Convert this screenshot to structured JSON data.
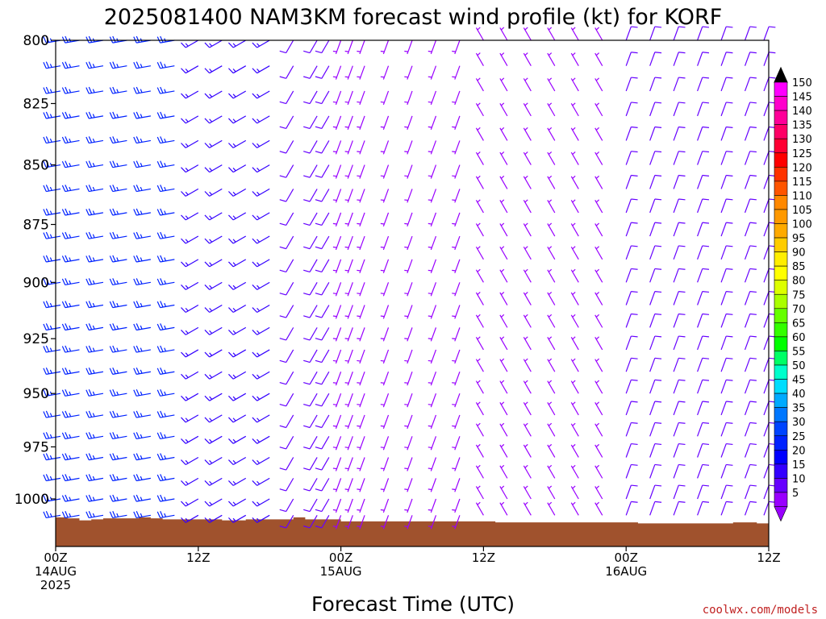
{
  "title": "2025081400 NAM3KM forecast wind profile (kt) for KORF",
  "credit": "coolwx.com/models",
  "chart_data": {
    "type": "wind-barb profile",
    "xlabel": "Forecast Time (UTC)",
    "ylabel": "",
    "y_axis": {
      "levels_hPa": [
        800,
        825,
        850,
        875,
        900,
        925,
        950,
        975,
        1000
      ],
      "range": [
        800,
        1020
      ],
      "inverted": true
    },
    "x_axis": {
      "range_hours": [
        0,
        60
      ],
      "ticks": [
        {
          "hour": 0,
          "lines": [
            "00Z",
            "14AUG",
            "2025"
          ]
        },
        {
          "hour": 12,
          "lines": [
            "12Z"
          ]
        },
        {
          "hour": 24,
          "lines": [
            "00Z",
            "15AUG"
          ]
        },
        {
          "hour": 36,
          "lines": [
            "12Z"
          ]
        },
        {
          "hour": 48,
          "lines": [
            "00Z",
            "16AUG"
          ]
        },
        {
          "hour": 60,
          "lines": [
            "12Z"
          ]
        }
      ]
    },
    "colorbar": {
      "unit": "kt",
      "labels": [
        150,
        145,
        140,
        135,
        130,
        125,
        120,
        115,
        110,
        105,
        100,
        95,
        90,
        85,
        80,
        75,
        70,
        65,
        60,
        55,
        50,
        45,
        40,
        35,
        30,
        25,
        20,
        15,
        10,
        5
      ],
      "colors": [
        "#ff00ff",
        "#ff00cc",
        "#ff0099",
        "#ff0066",
        "#ff0033",
        "#ff0000",
        "#ff3300",
        "#ff5500",
        "#ff8800",
        "#ff9900",
        "#ffaa00",
        "#ffcc00",
        "#ffee00",
        "#ffff00",
        "#ddff00",
        "#aaff00",
        "#66ff00",
        "#33ff00",
        "#00ff00",
        "#00ff66",
        "#00ffcc",
        "#00ddff",
        "#00aaff",
        "#0077ff",
        "#0044ff",
        "#0022ff",
        "#0000ff",
        "#3300ff",
        "#6600ff",
        "#9900ff"
      ]
    },
    "terrain": {
      "color": "#a0522d",
      "surface_pressure_hPa": [
        1009,
        1009.5,
        1010.5,
        1010,
        1009.5,
        1009.5,
        1009.5,
        1009,
        1009.5,
        1010,
        1010,
        1010,
        1010,
        1010,
        1010.5,
        1010.5,
        1010,
        1010,
        1010,
        1010,
        1009,
        1010,
        1010,
        1010,
        1011,
        1011,
        1011,
        1011,
        1011,
        1011,
        1011,
        1011,
        1011,
        1011,
        1011,
        1011,
        1011,
        1011.5,
        1011.5,
        1011.5,
        1011.5,
        1011.5,
        1011.5,
        1011.5,
        1011.5,
        1011.5,
        1011.5,
        1011.5,
        1011.5,
        1012,
        1012,
        1012,
        1012,
        1012,
        1012,
        1012,
        1012,
        1011.5,
        1011.5,
        1012,
        1012
      ]
    },
    "barbs": {
      "times_hours": [
        0,
        2,
        4,
        6,
        8,
        10,
        12,
        14,
        16,
        18,
        20,
        22,
        23,
        24,
        25,
        26,
        28,
        30,
        32,
        34,
        36,
        38,
        40,
        42,
        44,
        46,
        48,
        50,
        52,
        54,
        56,
        58,
        60
      ],
      "levels_hPa": [
        800,
        810,
        820,
        830,
        840,
        850,
        860,
        870,
        880,
        890,
        900,
        910,
        920,
        930,
        940,
        950,
        960,
        970,
        980,
        990,
        1000,
        1008
      ],
      "regimes": [
        {
          "hours": [
            0,
            12
          ],
          "direction_deg": 260,
          "speed_kt": 25
        },
        {
          "hours": [
            12,
            20
          ],
          "direction_deg": 240,
          "speed_kt": 15
        },
        {
          "hours": [
            20,
            24
          ],
          "direction_deg": 210,
          "speed_kt": 10
        },
        {
          "hours": [
            24,
            36
          ],
          "direction_deg": 200,
          "speed_kt": 7
        },
        {
          "hours": [
            36,
            48
          ],
          "direction_deg": 330,
          "speed_kt": 7
        },
        {
          "hours": [
            48,
            60
          ],
          "direction_deg": 20,
          "speed_kt": 10
        }
      ]
    }
  }
}
